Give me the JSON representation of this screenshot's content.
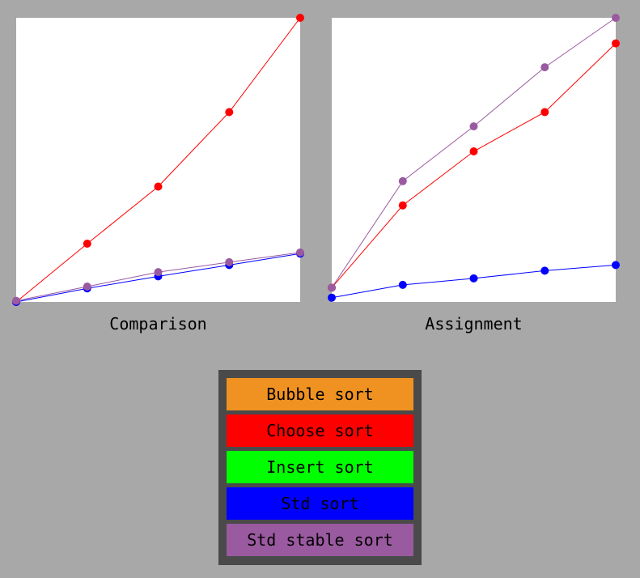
{
  "chart_data": [
    {
      "type": "line",
      "title": "Comparison",
      "x": [
        0,
        1,
        2,
        3,
        4
      ],
      "ylim": [
        0,
        1
      ],
      "grid": false,
      "series": [
        {
          "name": "Choose sort",
          "color": "#ff0000",
          "values": [
            0.0,
            0.205,
            0.406,
            0.668,
            1.0
          ]
        },
        {
          "name": "Std sort",
          "color": "#0000ff",
          "values": [
            0.0,
            0.048,
            0.09,
            0.13,
            0.17
          ]
        },
        {
          "name": "Std stable sort",
          "color": "#9a5aa0",
          "values": [
            0.004,
            0.054,
            0.105,
            0.14,
            0.174
          ]
        }
      ]
    },
    {
      "type": "line",
      "title": "Assignment",
      "x": [
        0,
        1,
        2,
        3,
        4
      ],
      "ylim": [
        0,
        1
      ],
      "grid": false,
      "series": [
        {
          "name": "Choose sort",
          "color": "#ff0000",
          "values": [
            0.05,
            0.34,
            0.53,
            0.668,
            0.91
          ]
        },
        {
          "name": "Std sort",
          "color": "#0000ff",
          "values": [
            0.015,
            0.06,
            0.083,
            0.11,
            0.13
          ]
        },
        {
          "name": "Std stable sort",
          "color": "#9a5aa0",
          "values": [
            0.05,
            0.425,
            0.618,
            0.826,
            1.0
          ]
        }
      ]
    }
  ],
  "legend": {
    "buttons": [
      {
        "label": "Bubble sort",
        "color": "#ef9221"
      },
      {
        "label": "Choose sort",
        "color": "#ff0000"
      },
      {
        "label": "Insert sort",
        "color": "#00ff00"
      },
      {
        "label": "Std sort",
        "color": "#0000ff"
      },
      {
        "label": "Std stable sort",
        "color": "#9a5aa0"
      }
    ]
  }
}
